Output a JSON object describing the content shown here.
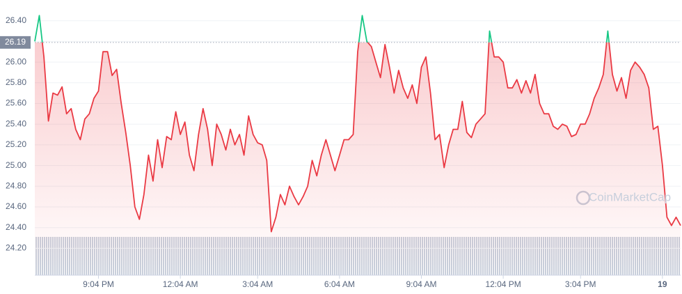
{
  "chart_data": {
    "type": "line",
    "watermark": "CoinMarketCap",
    "baseline": {
      "value": 26.19,
      "label": "26.19"
    },
    "color": "#ea3943",
    "above_color": "#16c784",
    "categories": [
      null,
      null,
      null,
      null,
      null,
      null,
      null,
      null,
      null,
      null,
      null,
      null,
      null,
      null,
      "9:04 PM",
      null,
      null,
      null,
      null,
      null,
      null,
      null,
      null,
      null,
      null,
      null,
      null,
      null,
      null,
      null,
      null,
      null,
      "12:04 AM",
      null,
      null,
      null,
      null,
      null,
      null,
      null,
      null,
      null,
      null,
      null,
      null,
      null,
      null,
      null,
      null,
      "3:04 AM",
      null,
      null,
      null,
      null,
      null,
      null,
      null,
      null,
      null,
      null,
      null,
      null,
      null,
      null,
      null,
      null,
      null,
      "6:04 AM",
      null,
      null,
      null,
      null,
      null,
      null,
      null,
      null,
      null,
      null,
      null,
      null,
      null,
      null,
      null,
      null,
      null,
      "9:04 AM",
      null,
      null,
      null,
      null,
      null,
      null,
      null,
      null,
      null,
      null,
      null,
      null,
      null,
      null,
      null,
      null,
      null,
      "12:04 PM",
      null,
      null,
      null,
      null,
      null,
      null,
      null,
      null,
      null,
      null,
      null,
      null,
      null,
      null,
      null,
      null,
      "3:04 PM",
      null,
      null,
      null,
      null,
      null,
      null,
      null,
      null,
      null,
      null,
      null,
      null,
      null,
      null,
      null,
      null,
      null,
      "19",
      null,
      null,
      null,
      null
    ],
    "values": [
      26.2,
      26.45,
      26.05,
      25.43,
      25.7,
      25.68,
      25.76,
      25.5,
      25.55,
      25.35,
      25.25,
      25.45,
      25.5,
      25.65,
      25.72,
      26.1,
      26.1,
      25.87,
      25.93,
      25.6,
      25.32,
      25.0,
      24.6,
      24.48,
      24.72,
      25.1,
      24.85,
      25.25,
      24.98,
      25.28,
      25.25,
      25.52,
      25.3,
      25.42,
      25.1,
      24.95,
      25.3,
      25.55,
      25.35,
      25.0,
      25.4,
      25.3,
      25.15,
      25.35,
      25.2,
      25.3,
      25.1,
      25.48,
      25.3,
      25.22,
      25.2,
      25.05,
      24.36,
      24.5,
      24.72,
      24.62,
      24.8,
      24.7,
      24.62,
      24.7,
      24.8,
      25.05,
      24.9,
      25.1,
      25.25,
      25.1,
      24.95,
      25.1,
      25.25,
      25.25,
      25.3,
      26.1,
      26.45,
      26.2,
      26.15,
      26.0,
      25.85,
      26.17,
      25.95,
      25.7,
      25.92,
      25.75,
      25.65,
      25.78,
      25.6,
      25.95,
      26.05,
      25.7,
      25.25,
      25.3,
      24.98,
      25.2,
      25.35,
      25.35,
      25.62,
      25.32,
      25.27,
      25.4,
      25.45,
      25.5,
      26.3,
      26.05,
      26.05,
      26.0,
      25.75,
      25.75,
      25.83,
      25.7,
      25.82,
      25.7,
      25.88,
      25.6,
      25.5,
      25.5,
      25.38,
      25.35,
      25.4,
      25.38,
      25.28,
      25.3,
      25.4,
      25.4,
      25.5,
      25.65,
      25.75,
      25.88,
      26.3,
      25.88,
      25.72,
      25.85,
      25.65,
      25.92,
      26.0,
      25.95,
      25.88,
      25.75,
      25.35,
      25.38,
      25.0,
      24.5,
      24.42,
      24.5,
      24.42
    ],
    "ylim": [
      23.94,
      26.6
    ],
    "yticks": [
      {
        "value": 24.2,
        "label": "24.20"
      },
      {
        "value": 24.4,
        "label": "24.40"
      },
      {
        "value": 24.6,
        "label": "24.60"
      },
      {
        "value": 24.8,
        "label": "24.80"
      },
      {
        "value": 25.0,
        "label": "25.00"
      },
      {
        "value": 25.2,
        "label": "25.20"
      },
      {
        "value": 25.4,
        "label": "25.40"
      },
      {
        "value": 25.6,
        "label": "25.60"
      },
      {
        "value": 25.8,
        "label": "25.80"
      },
      {
        "value": 26.0,
        "label": "26.00"
      },
      {
        "value": 26.2,
        "label": "26.20"
      },
      {
        "value": 26.4,
        "label": "26.40"
      }
    ],
    "grid": true
  }
}
